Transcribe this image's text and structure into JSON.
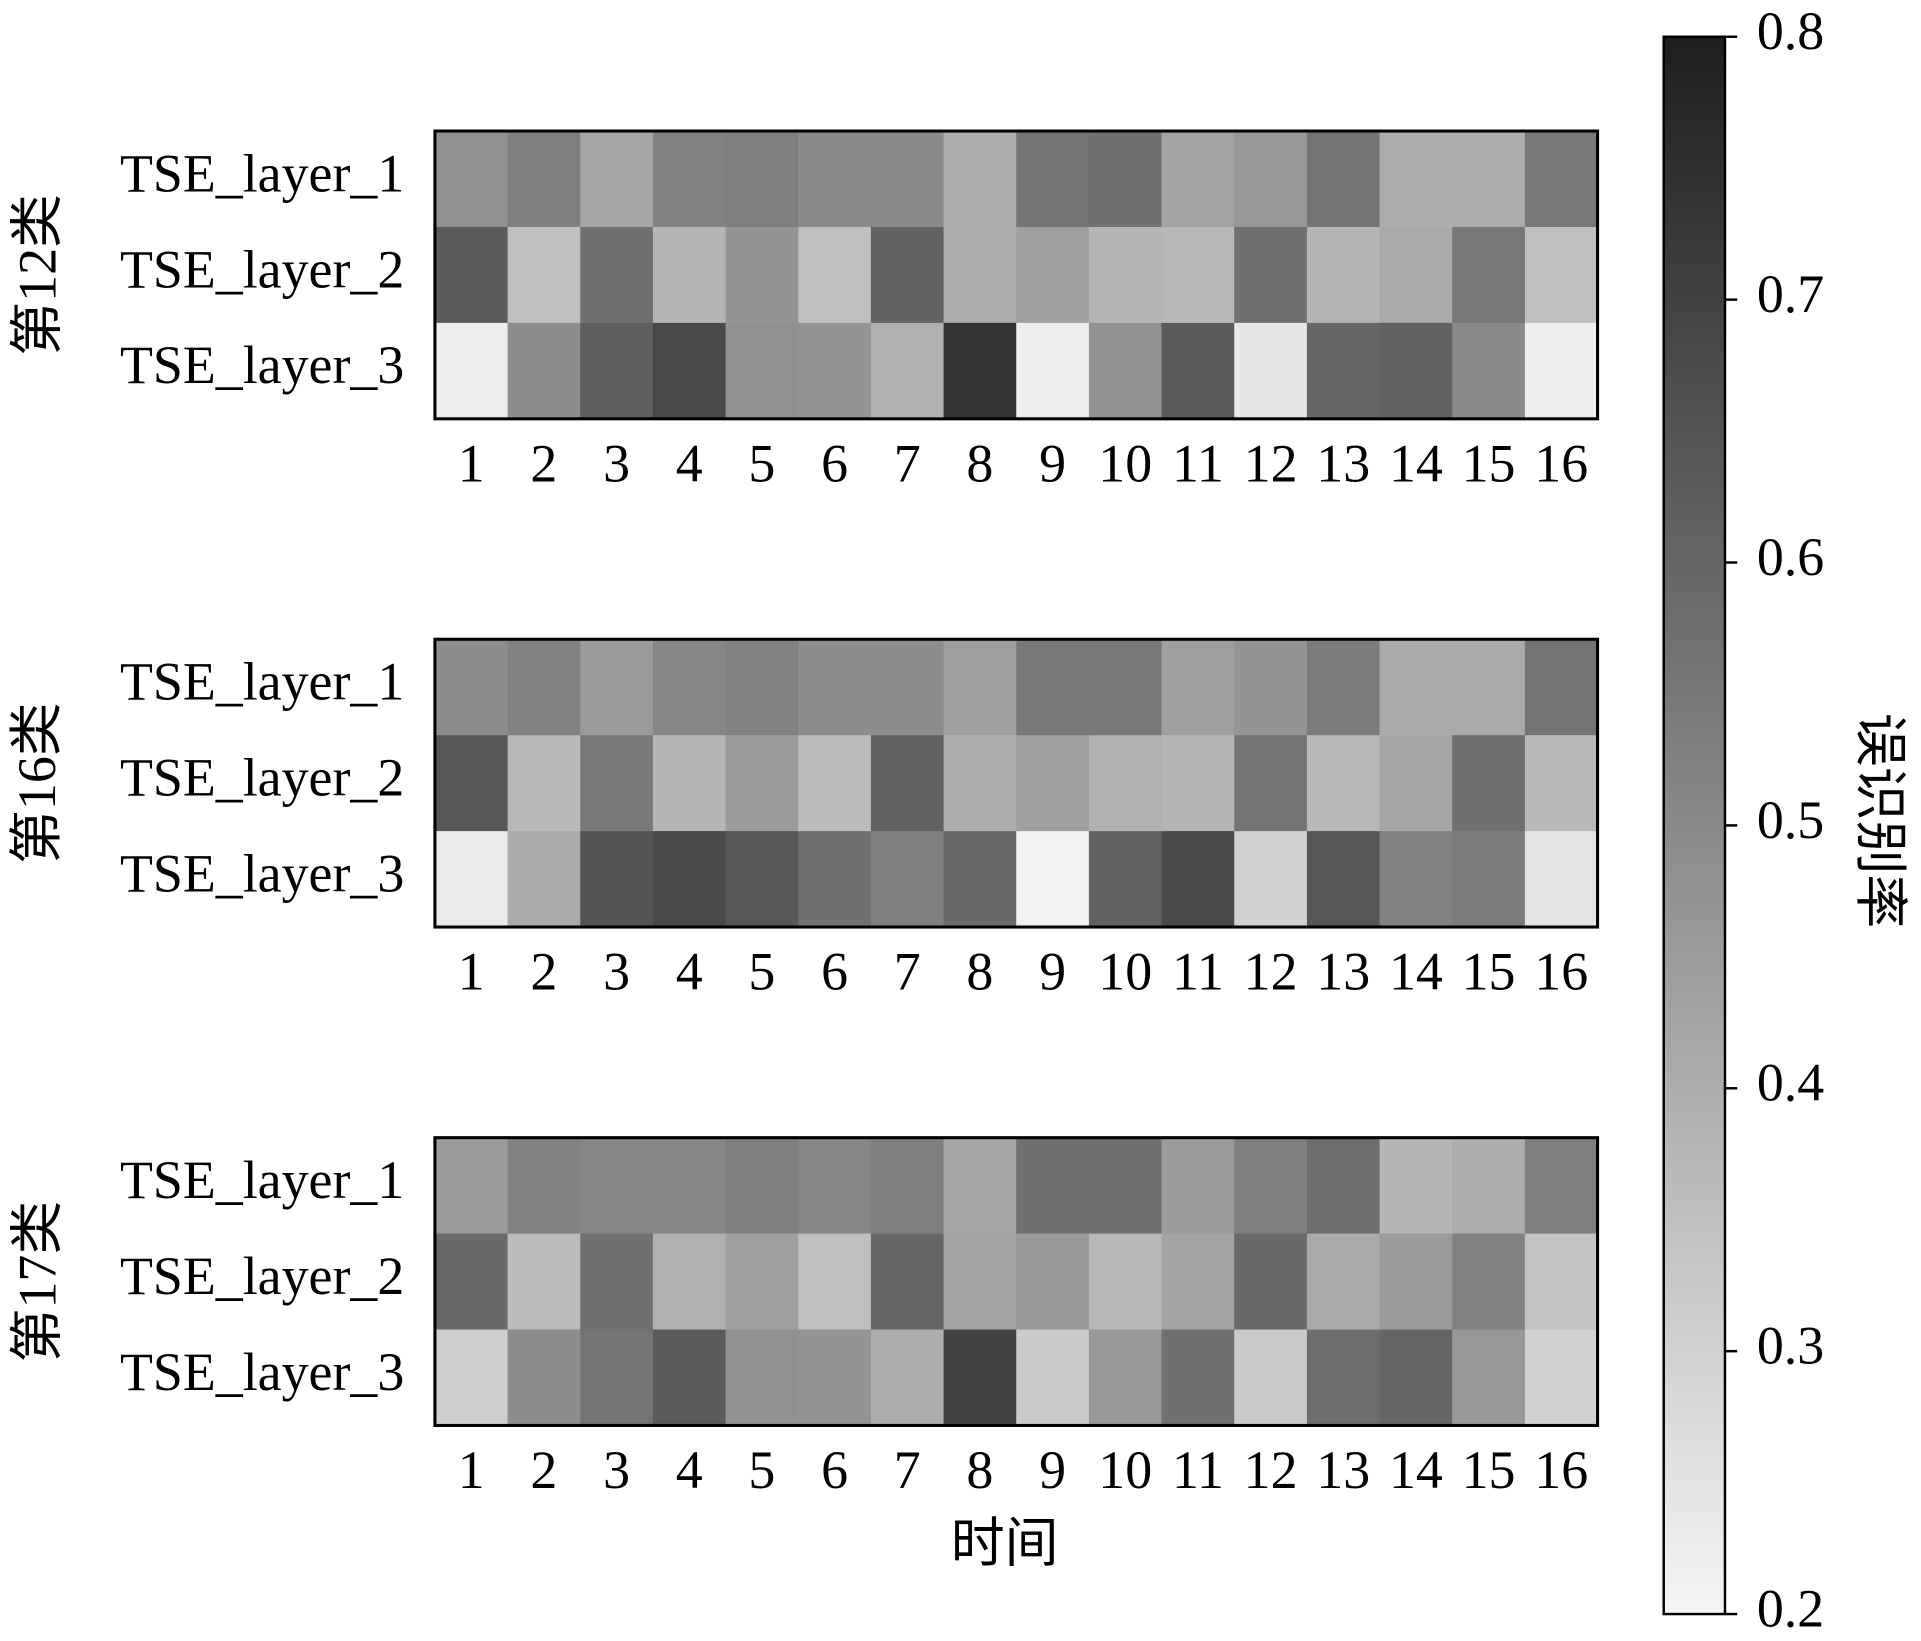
{
  "chart_data": {
    "type": "heatmap",
    "xlabel": "时间",
    "categories": [
      "1",
      "2",
      "3",
      "4",
      "5",
      "6",
      "7",
      "8",
      "9",
      "10",
      "11",
      "12",
      "13",
      "14",
      "15",
      "16"
    ],
    "row_labels": [
      "TSE_layer_1",
      "TSE_layer_2",
      "TSE_layer_3"
    ],
    "cmap": [
      "#f5f5f5",
      "#1e1e1e"
    ],
    "colorbar": {
      "label": "误识别率",
      "lim": [
        0.2,
        0.8
      ],
      "ticks": [
        0.2,
        0.3,
        0.4,
        0.5,
        0.6,
        0.7,
        0.8
      ]
    },
    "panels": [
      {
        "title": "第12类",
        "values": [
          [
            0.48,
            0.53,
            0.42,
            0.52,
            0.53,
            0.5,
            0.5,
            0.4,
            0.56,
            0.57,
            0.43,
            0.46,
            0.56,
            0.4,
            0.4,
            0.55
          ],
          [
            0.63,
            0.35,
            0.57,
            0.38,
            0.47,
            0.35,
            0.61,
            0.4,
            0.44,
            0.38,
            0.37,
            0.57,
            0.38,
            0.41,
            0.55,
            0.35
          ],
          [
            0.22,
            0.49,
            0.62,
            0.68,
            0.48,
            0.47,
            0.39,
            0.74,
            0.22,
            0.48,
            0.63,
            0.24,
            0.6,
            0.61,
            0.5,
            0.22
          ]
        ]
      },
      {
        "title": "第16类",
        "values": [
          [
            0.49,
            0.52,
            0.45,
            0.51,
            0.52,
            0.49,
            0.49,
            0.44,
            0.55,
            0.55,
            0.44,
            0.47,
            0.54,
            0.41,
            0.41,
            0.56
          ],
          [
            0.64,
            0.37,
            0.55,
            0.38,
            0.45,
            0.36,
            0.61,
            0.4,
            0.44,
            0.39,
            0.38,
            0.56,
            0.37,
            0.42,
            0.57,
            0.37
          ],
          [
            0.23,
            0.41,
            0.65,
            0.68,
            0.64,
            0.57,
            0.53,
            0.59,
            0.21,
            0.61,
            0.68,
            0.3,
            0.64,
            0.52,
            0.54,
            0.25
          ]
        ]
      },
      {
        "title": "第17类",
        "values": [
          [
            0.45,
            0.52,
            0.51,
            0.51,
            0.53,
            0.51,
            0.53,
            0.42,
            0.57,
            0.57,
            0.45,
            0.53,
            0.58,
            0.38,
            0.4,
            0.53
          ],
          [
            0.59,
            0.36,
            0.57,
            0.39,
            0.44,
            0.35,
            0.6,
            0.43,
            0.46,
            0.37,
            0.43,
            0.59,
            0.41,
            0.45,
            0.52,
            0.34
          ],
          [
            0.31,
            0.49,
            0.56,
            0.63,
            0.48,
            0.47,
            0.4,
            0.7,
            0.32,
            0.46,
            0.57,
            0.32,
            0.58,
            0.6,
            0.46,
            0.3
          ]
        ]
      }
    ]
  }
}
